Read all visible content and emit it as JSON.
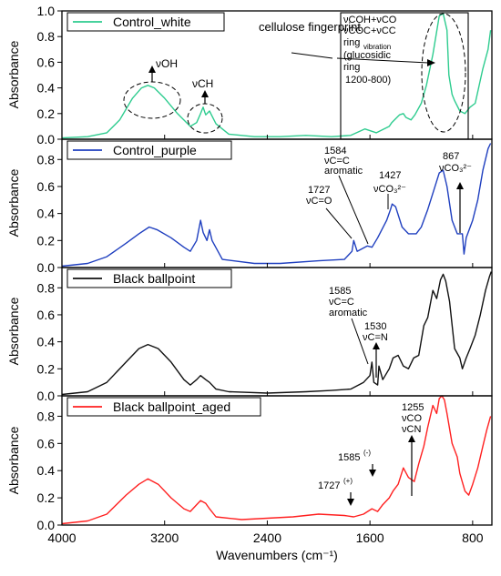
{
  "chart_data": {
    "type": "line",
    "xlabel": "Wavenumbers (cm⁻¹)",
    "ylabel": "Absorbance",
    "xlim": [
      4000,
      650
    ],
    "x_ticks": [
      4000,
      3200,
      2400,
      1600,
      800
    ],
    "panels": [
      {
        "name": "Control_white",
        "color": "#2ecc8f",
        "ylim": [
          0,
          1.0
        ],
        "y_ticks": [
          "0.0",
          "0.2",
          "0.4",
          "0.6",
          "0.8",
          "1.0"
        ],
        "points": [
          [
            4000,
            0.01
          ],
          [
            3800,
            0.02
          ],
          [
            3650,
            0.05
          ],
          [
            3550,
            0.15
          ],
          [
            3450,
            0.32
          ],
          [
            3380,
            0.4
          ],
          [
            3330,
            0.42
          ],
          [
            3280,
            0.4
          ],
          [
            3200,
            0.32
          ],
          [
            3100,
            0.2
          ],
          [
            3000,
            0.1
          ],
          [
            2950,
            0.13
          ],
          [
            2920,
            0.2
          ],
          [
            2900,
            0.25
          ],
          [
            2880,
            0.19
          ],
          [
            2850,
            0.22
          ],
          [
            2800,
            0.12
          ],
          [
            2700,
            0.04
          ],
          [
            2500,
            0.02
          ],
          [
            2300,
            0.02
          ],
          [
            2100,
            0.03
          ],
          [
            1900,
            0.02
          ],
          [
            1750,
            0.03
          ],
          [
            1640,
            0.08
          ],
          [
            1550,
            0.05
          ],
          [
            1450,
            0.1
          ],
          [
            1430,
            0.13
          ],
          [
            1370,
            0.19
          ],
          [
            1340,
            0.2
          ],
          [
            1320,
            0.17
          ],
          [
            1280,
            0.15
          ],
          [
            1250,
            0.19
          ],
          [
            1200,
            0.28
          ],
          [
            1160,
            0.42
          ],
          [
            1110,
            0.66
          ],
          [
            1060,
            0.96
          ],
          [
            1030,
            0.98
          ],
          [
            1000,
            0.85
          ],
          [
            985,
            0.5
          ],
          [
            960,
            0.35
          ],
          [
            940,
            0.3
          ],
          [
            900,
            0.22
          ],
          [
            860,
            0.2
          ],
          [
            820,
            0.25
          ],
          [
            780,
            0.28
          ],
          [
            720,
            0.55
          ],
          [
            680,
            0.7
          ],
          [
            660,
            0.85
          ]
        ],
        "annotations": [
          "νOH",
          "νCH",
          "cellulose fingerprint"
        ],
        "box_lines": [
          "νCOH+νCO",
          "νCOC+νCC",
          "ring",
          "vibration",
          "(glucosidic",
          "ring",
          "1200-800)"
        ]
      },
      {
        "name": "Control_purple",
        "color": "#1f3fbf",
        "ylim": [
          0,
          0.95
        ],
        "y_ticks": [
          "0.0",
          "0.2",
          "0.4",
          "0.6",
          "0.8"
        ],
        "points": [
          [
            4000,
            0.01
          ],
          [
            3800,
            0.03
          ],
          [
            3650,
            0.08
          ],
          [
            3500,
            0.18
          ],
          [
            3400,
            0.25
          ],
          [
            3320,
            0.3
          ],
          [
            3260,
            0.28
          ],
          [
            3150,
            0.22
          ],
          [
            3050,
            0.15
          ],
          [
            3000,
            0.12
          ],
          [
            2950,
            0.2
          ],
          [
            2920,
            0.35
          ],
          [
            2900,
            0.26
          ],
          [
            2870,
            0.2
          ],
          [
            2850,
            0.28
          ],
          [
            2830,
            0.2
          ],
          [
            2750,
            0.06
          ],
          [
            2500,
            0.03
          ],
          [
            2300,
            0.03
          ],
          [
            2000,
            0.05
          ],
          [
            1800,
            0.06
          ],
          [
            1740,
            0.12
          ],
          [
            1727,
            0.2
          ],
          [
            1700,
            0.12
          ],
          [
            1620,
            0.16
          ],
          [
            1584,
            0.15
          ],
          [
            1540,
            0.22
          ],
          [
            1470,
            0.35
          ],
          [
            1440,
            0.43
          ],
          [
            1427,
            0.47
          ],
          [
            1400,
            0.45
          ],
          [
            1350,
            0.3
          ],
          [
            1300,
            0.25
          ],
          [
            1240,
            0.25
          ],
          [
            1200,
            0.3
          ],
          [
            1150,
            0.43
          ],
          [
            1100,
            0.58
          ],
          [
            1060,
            0.7
          ],
          [
            1030,
            0.72
          ],
          [
            1000,
            0.6
          ],
          [
            960,
            0.35
          ],
          [
            920,
            0.25
          ],
          [
            880,
            0.25
          ],
          [
            867,
            0.1
          ],
          [
            850,
            0.22
          ],
          [
            800,
            0.35
          ],
          [
            760,
            0.5
          ],
          [
            720,
            0.72
          ],
          [
            680,
            0.88
          ],
          [
            660,
            0.92
          ]
        ],
        "annotations": [
          "1727",
          "νC=O",
          "1584",
          "νC=C",
          "aromatic",
          "1427",
          "νCO₃²⁻",
          "867",
          "νCO₃²⁻"
        ]
      },
      {
        "name": "Black ballpoint",
        "color": "#111111",
        "ylim": [
          0,
          0.95
        ],
        "y_ticks": [
          "0.0",
          "0.2",
          "0.4",
          "0.6",
          "0.8"
        ],
        "points": [
          [
            4000,
            0.01
          ],
          [
            3800,
            0.03
          ],
          [
            3650,
            0.1
          ],
          [
            3500,
            0.25
          ],
          [
            3400,
            0.35
          ],
          [
            3330,
            0.38
          ],
          [
            3250,
            0.35
          ],
          [
            3150,
            0.25
          ],
          [
            3050,
            0.12
          ],
          [
            3000,
            0.08
          ],
          [
            2950,
            0.12
          ],
          [
            2920,
            0.15
          ],
          [
            2880,
            0.12
          ],
          [
            2850,
            0.1
          ],
          [
            2800,
            0.05
          ],
          [
            2700,
            0.03
          ],
          [
            2400,
            0.02
          ],
          [
            2100,
            0.03
          ],
          [
            1900,
            0.04
          ],
          [
            1750,
            0.05
          ],
          [
            1650,
            0.1
          ],
          [
            1600,
            0.15
          ],
          [
            1585,
            0.25
          ],
          [
            1570,
            0.1
          ],
          [
            1540,
            0.08
          ],
          [
            1530,
            0.22
          ],
          [
            1500,
            0.12
          ],
          [
            1450,
            0.2
          ],
          [
            1420,
            0.28
          ],
          [
            1380,
            0.3
          ],
          [
            1340,
            0.22
          ],
          [
            1300,
            0.2
          ],
          [
            1260,
            0.28
          ],
          [
            1220,
            0.3
          ],
          [
            1180,
            0.52
          ],
          [
            1150,
            0.58
          ],
          [
            1110,
            0.78
          ],
          [
            1080,
            0.72
          ],
          [
            1050,
            0.86
          ],
          [
            1030,
            0.9
          ],
          [
            1010,
            0.85
          ],
          [
            980,
            0.7
          ],
          [
            940,
            0.35
          ],
          [
            900,
            0.28
          ],
          [
            880,
            0.2
          ],
          [
            850,
            0.28
          ],
          [
            820,
            0.35
          ],
          [
            780,
            0.45
          ],
          [
            740,
            0.6
          ],
          [
            700,
            0.78
          ],
          [
            670,
            0.88
          ],
          [
            655,
            0.92
          ]
        ],
        "annotations": [
          "1585",
          "νC=C",
          "aromatic",
          "1530",
          "νC=N"
        ]
      },
      {
        "name": "Black ballpoint_aged",
        "color": "#ff2020",
        "ylim": [
          0,
          0.95
        ],
        "y_ticks": [
          "0.0",
          "0.2",
          "0.4",
          "0.6",
          "0.8"
        ],
        "points": [
          [
            4000,
            0.01
          ],
          [
            3800,
            0.03
          ],
          [
            3650,
            0.08
          ],
          [
            3500,
            0.22
          ],
          [
            3400,
            0.3
          ],
          [
            3330,
            0.34
          ],
          [
            3250,
            0.3
          ],
          [
            3150,
            0.2
          ],
          [
            3050,
            0.12
          ],
          [
            3000,
            0.1
          ],
          [
            2950,
            0.15
          ],
          [
            2920,
            0.18
          ],
          [
            2880,
            0.16
          ],
          [
            2850,
            0.12
          ],
          [
            2800,
            0.06
          ],
          [
            2600,
            0.04
          ],
          [
            2400,
            0.05
          ],
          [
            2200,
            0.06
          ],
          [
            2000,
            0.08
          ],
          [
            1800,
            0.07
          ],
          [
            1727,
            0.06
          ],
          [
            1650,
            0.08
          ],
          [
            1585,
            0.12
          ],
          [
            1540,
            0.1
          ],
          [
            1500,
            0.15
          ],
          [
            1450,
            0.2
          ],
          [
            1420,
            0.25
          ],
          [
            1380,
            0.3
          ],
          [
            1340,
            0.42
          ],
          [
            1300,
            0.35
          ],
          [
            1255,
            0.32
          ],
          [
            1220,
            0.45
          ],
          [
            1180,
            0.58
          ],
          [
            1150,
            0.72
          ],
          [
            1110,
            0.88
          ],
          [
            1080,
            0.82
          ],
          [
            1060,
            0.93
          ],
          [
            1040,
            0.95
          ],
          [
            1020,
            0.92
          ],
          [
            1000,
            0.82
          ],
          [
            960,
            0.6
          ],
          [
            920,
            0.5
          ],
          [
            900,
            0.38
          ],
          [
            860,
            0.25
          ],
          [
            830,
            0.22
          ],
          [
            800,
            0.3
          ],
          [
            760,
            0.42
          ],
          [
            720,
            0.58
          ],
          [
            690,
            0.7
          ],
          [
            660,
            0.8
          ]
        ],
        "annotations": [
          "1255",
          "νCO",
          "νCN",
          "1585",
          "(-)",
          "1727",
          "(+)"
        ]
      }
    ]
  }
}
